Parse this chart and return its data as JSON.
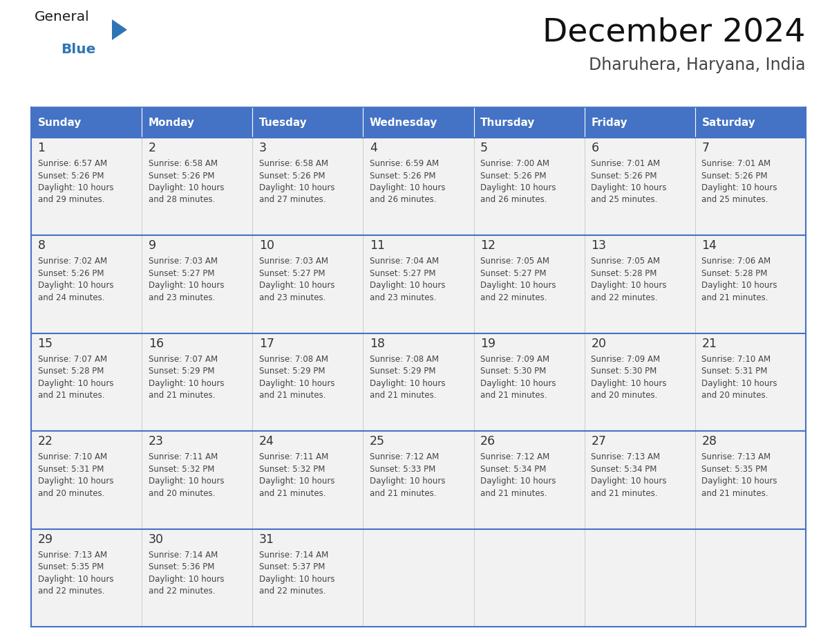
{
  "title": "December 2024",
  "subtitle": "Dharuhera, Haryana, India",
  "header_bg": "#4472C4",
  "header_text_color": "#FFFFFF",
  "cell_bg_light": "#F2F2F2",
  "cell_bg_white": "#FFFFFF",
  "cell_border_color": "#4472C4",
  "cell_inner_border": "#CCCCCC",
  "day_number_color": "#333333",
  "cell_text_color": "#444444",
  "days_of_week": [
    "Sunday",
    "Monday",
    "Tuesday",
    "Wednesday",
    "Thursday",
    "Friday",
    "Saturday"
  ],
  "logo_general_color": "#1a1a1a",
  "logo_blue_color": "#2E75B6",
  "calendar_data": [
    [
      {
        "day": 1,
        "sunrise": "6:57 AM",
        "sunset": "5:26 PM",
        "daylight_hours": 10,
        "daylight_minutes": 29
      },
      {
        "day": 2,
        "sunrise": "6:58 AM",
        "sunset": "5:26 PM",
        "daylight_hours": 10,
        "daylight_minutes": 28
      },
      {
        "day": 3,
        "sunrise": "6:58 AM",
        "sunset": "5:26 PM",
        "daylight_hours": 10,
        "daylight_minutes": 27
      },
      {
        "day": 4,
        "sunrise": "6:59 AM",
        "sunset": "5:26 PM",
        "daylight_hours": 10,
        "daylight_minutes": 26
      },
      {
        "day": 5,
        "sunrise": "7:00 AM",
        "sunset": "5:26 PM",
        "daylight_hours": 10,
        "daylight_minutes": 26
      },
      {
        "day": 6,
        "sunrise": "7:01 AM",
        "sunset": "5:26 PM",
        "daylight_hours": 10,
        "daylight_minutes": 25
      },
      {
        "day": 7,
        "sunrise": "7:01 AM",
        "sunset": "5:26 PM",
        "daylight_hours": 10,
        "daylight_minutes": 25
      }
    ],
    [
      {
        "day": 8,
        "sunrise": "7:02 AM",
        "sunset": "5:26 PM",
        "daylight_hours": 10,
        "daylight_minutes": 24
      },
      {
        "day": 9,
        "sunrise": "7:03 AM",
        "sunset": "5:27 PM",
        "daylight_hours": 10,
        "daylight_minutes": 23
      },
      {
        "day": 10,
        "sunrise": "7:03 AM",
        "sunset": "5:27 PM",
        "daylight_hours": 10,
        "daylight_minutes": 23
      },
      {
        "day": 11,
        "sunrise": "7:04 AM",
        "sunset": "5:27 PM",
        "daylight_hours": 10,
        "daylight_minutes": 23
      },
      {
        "day": 12,
        "sunrise": "7:05 AM",
        "sunset": "5:27 PM",
        "daylight_hours": 10,
        "daylight_minutes": 22
      },
      {
        "day": 13,
        "sunrise": "7:05 AM",
        "sunset": "5:28 PM",
        "daylight_hours": 10,
        "daylight_minutes": 22
      },
      {
        "day": 14,
        "sunrise": "7:06 AM",
        "sunset": "5:28 PM",
        "daylight_hours": 10,
        "daylight_minutes": 21
      }
    ],
    [
      {
        "day": 15,
        "sunrise": "7:07 AM",
        "sunset": "5:28 PM",
        "daylight_hours": 10,
        "daylight_minutes": 21
      },
      {
        "day": 16,
        "sunrise": "7:07 AM",
        "sunset": "5:29 PM",
        "daylight_hours": 10,
        "daylight_minutes": 21
      },
      {
        "day": 17,
        "sunrise": "7:08 AM",
        "sunset": "5:29 PM",
        "daylight_hours": 10,
        "daylight_minutes": 21
      },
      {
        "day": 18,
        "sunrise": "7:08 AM",
        "sunset": "5:29 PM",
        "daylight_hours": 10,
        "daylight_minutes": 21
      },
      {
        "day": 19,
        "sunrise": "7:09 AM",
        "sunset": "5:30 PM",
        "daylight_hours": 10,
        "daylight_minutes": 21
      },
      {
        "day": 20,
        "sunrise": "7:09 AM",
        "sunset": "5:30 PM",
        "daylight_hours": 10,
        "daylight_minutes": 20
      },
      {
        "day": 21,
        "sunrise": "7:10 AM",
        "sunset": "5:31 PM",
        "daylight_hours": 10,
        "daylight_minutes": 20
      }
    ],
    [
      {
        "day": 22,
        "sunrise": "7:10 AM",
        "sunset": "5:31 PM",
        "daylight_hours": 10,
        "daylight_minutes": 20
      },
      {
        "day": 23,
        "sunrise": "7:11 AM",
        "sunset": "5:32 PM",
        "daylight_hours": 10,
        "daylight_minutes": 20
      },
      {
        "day": 24,
        "sunrise": "7:11 AM",
        "sunset": "5:32 PM",
        "daylight_hours": 10,
        "daylight_minutes": 21
      },
      {
        "day": 25,
        "sunrise": "7:12 AM",
        "sunset": "5:33 PM",
        "daylight_hours": 10,
        "daylight_minutes": 21
      },
      {
        "day": 26,
        "sunrise": "7:12 AM",
        "sunset": "5:34 PM",
        "daylight_hours": 10,
        "daylight_minutes": 21
      },
      {
        "day": 27,
        "sunrise": "7:13 AM",
        "sunset": "5:34 PM",
        "daylight_hours": 10,
        "daylight_minutes": 21
      },
      {
        "day": 28,
        "sunrise": "7:13 AM",
        "sunset": "5:35 PM",
        "daylight_hours": 10,
        "daylight_minutes": 21
      }
    ],
    [
      {
        "day": 29,
        "sunrise": "7:13 AM",
        "sunset": "5:35 PM",
        "daylight_hours": 10,
        "daylight_minutes": 22
      },
      {
        "day": 30,
        "sunrise": "7:14 AM",
        "sunset": "5:36 PM",
        "daylight_hours": 10,
        "daylight_minutes": 22
      },
      {
        "day": 31,
        "sunrise": "7:14 AM",
        "sunset": "5:37 PM",
        "daylight_hours": 10,
        "daylight_minutes": 22
      },
      null,
      null,
      null,
      null
    ]
  ]
}
